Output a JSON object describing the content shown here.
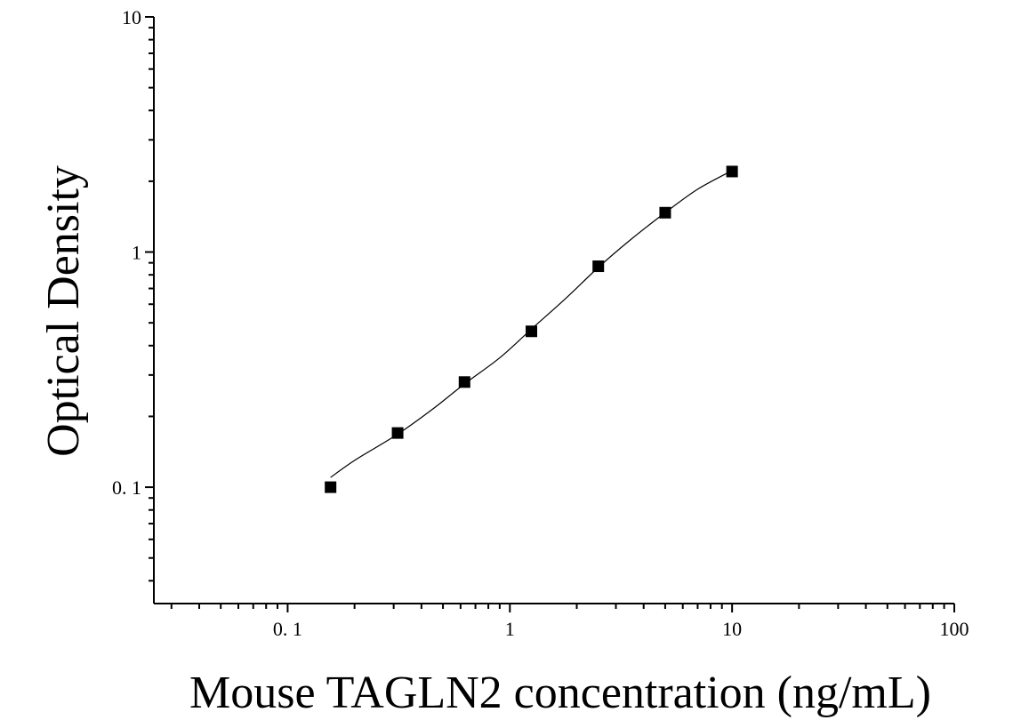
{
  "chart_data": {
    "type": "scatter",
    "title": "",
    "xlabel": "Mouse TAGLN2 concentration (ng/mL)",
    "ylabel": "Optical Density",
    "x_scale": "log",
    "y_scale": "log",
    "xlim": [
      0.025,
      100
    ],
    "ylim": [
      0.032,
      10
    ],
    "x_ticks": [
      {
        "value": 0.1,
        "label": "0. 1"
      },
      {
        "value": 1,
        "label": "1"
      },
      {
        "value": 10,
        "label": "10"
      },
      {
        "value": 100,
        "label": "100"
      }
    ],
    "y_ticks": [
      {
        "value": 0.1,
        "label": "0. 1"
      },
      {
        "value": 1,
        "label": "1"
      },
      {
        "value": 10,
        "label": "10"
      }
    ],
    "grid": false,
    "legend": "none",
    "marker_color": "#000000",
    "series": [
      {
        "points": [
          {
            "x": 0.156,
            "y": 0.1
          },
          {
            "x": 0.3125,
            "y": 0.17
          },
          {
            "x": 0.625,
            "y": 0.28
          },
          {
            "x": 1.25,
            "y": 0.46
          },
          {
            "x": 2.5,
            "y": 0.87
          },
          {
            "x": 5,
            "y": 1.47
          },
          {
            "x": 10,
            "y": 2.2
          }
        ]
      }
    ],
    "fit_curve": [
      {
        "x": 0.156,
        "y": 0.11
      },
      {
        "x": 0.2,
        "y": 0.13
      },
      {
        "x": 0.3125,
        "y": 0.168
      },
      {
        "x": 0.45,
        "y": 0.215
      },
      {
        "x": 0.625,
        "y": 0.275
      },
      {
        "x": 0.9,
        "y": 0.355
      },
      {
        "x": 1.25,
        "y": 0.47
      },
      {
        "x": 1.8,
        "y": 0.64
      },
      {
        "x": 2.5,
        "y": 0.86
      },
      {
        "x": 3.5,
        "y": 1.13
      },
      {
        "x": 5,
        "y": 1.47
      },
      {
        "x": 7,
        "y": 1.85
      },
      {
        "x": 10,
        "y": 2.22
      }
    ]
  }
}
